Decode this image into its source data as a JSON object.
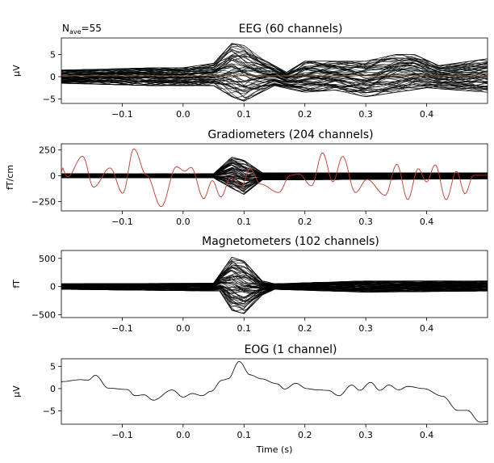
{
  "nave_label": {
    "base": "N",
    "sub": "ave",
    "value": "=55"
  },
  "chart_data": [
    {
      "type": "line",
      "title": "EEG (60 channels)",
      "ylabel": "µV",
      "xlabel": "",
      "xlim": [
        -0.2,
        0.5
      ],
      "ylim": [
        -6,
        8.7
      ],
      "xticks": [
        -0.1,
        0.0,
        0.1,
        0.2,
        0.3,
        0.4
      ],
      "xtick_labels": [
        "−0.1",
        "0.0",
        "0.1",
        "0.2",
        "0.3",
        "0.4"
      ],
      "yticks": [
        5,
        0,
        -5
      ],
      "ytick_labels": [
        "5",
        "0",
        "−5"
      ],
      "channel_count": 60,
      "trace_color": "#000000",
      "envelope_upper": [
        [
          -0.2,
          1.5
        ],
        [
          -0.05,
          2
        ],
        [
          0.0,
          2
        ],
        [
          0.05,
          3
        ],
        [
          0.08,
          7.5
        ],
        [
          0.1,
          7
        ],
        [
          0.13,
          4
        ],
        [
          0.17,
          1
        ],
        [
          0.2,
          3.5
        ],
        [
          0.3,
          3.5
        ],
        [
          0.35,
          5
        ],
        [
          0.38,
          5
        ],
        [
          0.42,
          2.5
        ],
        [
          0.5,
          4
        ]
      ],
      "envelope_lower": [
        [
          -0.2,
          -1.5
        ],
        [
          -0.05,
          -2
        ],
        [
          0.05,
          -2
        ],
        [
          0.08,
          -4.5
        ],
        [
          0.1,
          -5.5
        ],
        [
          0.15,
          -2
        ],
        [
          0.2,
          -3.5
        ],
        [
          0.25,
          -3
        ],
        [
          0.3,
          -4.5
        ],
        [
          0.4,
          -2.5
        ],
        [
          0.5,
          -3.5
        ]
      ],
      "highlight_color": "#c0392b",
      "highlight_trace": [
        [
          -0.2,
          0.2
        ],
        [
          0.5,
          0.2
        ]
      ]
    },
    {
      "type": "line",
      "title": "Gradiometers (204 channels)",
      "ylabel": "fT/cm",
      "xlabel": "",
      "xlim": [
        -0.2,
        0.5
      ],
      "ylim": [
        -340,
        310
      ],
      "xticks": [
        -0.1,
        0.0,
        0.1,
        0.2,
        0.3,
        0.4
      ],
      "xtick_labels": [
        "−0.1",
        "0.0",
        "0.1",
        "0.2",
        "0.3",
        "0.4"
      ],
      "yticks": [
        250,
        0,
        -250
      ],
      "ytick_labels": [
        "250",
        "0",
        "−250"
      ],
      "channel_count": 204,
      "trace_color": "#000000",
      "envelope_upper": [
        [
          -0.2,
          20
        ],
        [
          0.05,
          20
        ],
        [
          0.08,
          180
        ],
        [
          0.1,
          150
        ],
        [
          0.13,
          30
        ],
        [
          0.5,
          30
        ]
      ],
      "envelope_lower": [
        [
          -0.2,
          -20
        ],
        [
          0.05,
          -20
        ],
        [
          0.08,
          -120
        ],
        [
          0.1,
          -180
        ],
        [
          0.13,
          -40
        ],
        [
          0.5,
          -30
        ]
      ],
      "highlight_color": "#c0392b",
      "highlight_trace": [
        [
          -0.2,
          40
        ],
        [
          -0.201,
          100
        ],
        [
          -0.19,
          -10
        ],
        [
          -0.165,
          190
        ],
        [
          -0.147,
          -110
        ],
        [
          -0.12,
          77
        ],
        [
          -0.099,
          -170
        ],
        [
          -0.081,
          263
        ],
        [
          -0.06,
          5
        ],
        [
          -0.036,
          -300
        ],
        [
          -0.011,
          88
        ],
        [
          0.003,
          45
        ],
        [
          0.013,
          82
        ],
        [
          0.034,
          -222
        ],
        [
          0.048,
          -45
        ],
        [
          0.062,
          -206
        ],
        [
          0.078,
          -20
        ],
        [
          0.096,
          -98
        ],
        [
          0.11,
          70
        ],
        [
          0.127,
          -80
        ],
        [
          0.157,
          -162
        ],
        [
          0.176,
          5
        ],
        [
          0.19,
          18
        ],
        [
          0.211,
          -98
        ],
        [
          0.229,
          224
        ],
        [
          0.246,
          -60
        ],
        [
          0.262,
          190
        ],
        [
          0.283,
          -162
        ],
        [
          0.302,
          -35
        ],
        [
          0.332,
          -188
        ],
        [
          0.351,
          113
        ],
        [
          0.369,
          -232
        ],
        [
          0.386,
          70
        ],
        [
          0.4,
          -60
        ],
        [
          0.414,
          108
        ],
        [
          0.432,
          -232
        ],
        [
          0.449,
          45
        ],
        [
          0.463,
          -175
        ],
        [
          0.477,
          5
        ],
        [
          0.499,
          5
        ]
      ]
    },
    {
      "type": "line",
      "title": "Magnetometers (102 channels)",
      "ylabel": "fT",
      "xlabel": "",
      "xlim": [
        -0.2,
        0.5
      ],
      "ylim": [
        -550,
        640
      ],
      "xticks": [
        -0.1,
        0.0,
        0.1,
        0.2,
        0.3,
        0.4
      ],
      "xtick_labels": [
        "−0.1",
        "0.0",
        "0.1",
        "0.2",
        "0.3",
        "0.4"
      ],
      "yticks": [
        500,
        0,
        -500
      ],
      "ytick_labels": [
        "500",
        "0",
        "−500"
      ],
      "channel_count": 102,
      "trace_color": "#000000",
      "envelope_upper": [
        [
          -0.2,
          50
        ],
        [
          0.05,
          60
        ],
        [
          0.08,
          520
        ],
        [
          0.1,
          450
        ],
        [
          0.13,
          100
        ],
        [
          0.15,
          50
        ],
        [
          0.3,
          100
        ],
        [
          0.5,
          100
        ]
      ],
      "envelope_lower": [
        [
          -0.2,
          -50
        ],
        [
          0.06,
          -80
        ],
        [
          0.08,
          -420
        ],
        [
          0.1,
          -480
        ],
        [
          0.13,
          -150
        ],
        [
          0.15,
          -50
        ],
        [
          0.3,
          -100
        ],
        [
          0.5,
          -80
        ]
      ]
    },
    {
      "type": "line",
      "title": "EOG (1 channel)",
      "ylabel": "µV",
      "xlabel": "Time (s)",
      "xlim": [
        -0.2,
        0.5
      ],
      "ylim": [
        -8,
        6.7
      ],
      "xticks": [
        -0.1,
        0.0,
        0.1,
        0.2,
        0.3,
        0.4
      ],
      "xtick_labels": [
        "−0.1",
        "0.0",
        "0.1",
        "0.2",
        "0.3",
        "0.4"
      ],
      "yticks": [
        5,
        0,
        -5
      ],
      "ytick_labels": [
        "5",
        "0",
        "−5"
      ],
      "channel_count": 1,
      "trace_color": "#000000",
      "trace": [
        [
          -0.2,
          1.5
        ],
        [
          -0.197,
          1.6
        ],
        [
          -0.169,
          2.0
        ],
        [
          -0.156,
          1.9
        ],
        [
          -0.144,
          3.0
        ],
        [
          -0.123,
          0.1
        ],
        [
          -0.092,
          -0.2
        ],
        [
          -0.079,
          -1.6
        ],
        [
          -0.064,
          -1.4
        ],
        [
          -0.049,
          -2.6
        ],
        [
          -0.018,
          -0.3
        ],
        [
          0.0,
          -1.9
        ],
        [
          0.015,
          -1.1
        ],
        [
          0.031,
          -1.6
        ],
        [
          0.046,
          -0.6
        ],
        [
          0.064,
          1.9
        ],
        [
          0.074,
          2.2
        ],
        [
          0.092,
          6.1
        ],
        [
          0.11,
          3.1
        ],
        [
          0.128,
          2.2
        ],
        [
          0.154,
          1.1
        ],
        [
          0.167,
          -0.1
        ],
        [
          0.185,
          1.2
        ],
        [
          0.203,
          0
        ],
        [
          0.221,
          -0.3
        ],
        [
          0.238,
          -0.4
        ],
        [
          0.256,
          -1.6
        ],
        [
          0.277,
          0.8
        ],
        [
          0.29,
          -0.4
        ],
        [
          0.308,
          1.4
        ],
        [
          0.323,
          -0.4
        ],
        [
          0.338,
          0.8
        ],
        [
          0.354,
          -0.3
        ],
        [
          0.369,
          0.5
        ],
        [
          0.395,
          0
        ],
        [
          0.426,
          -1.7
        ],
        [
          0.451,
          -4.9
        ],
        [
          0.467,
          -4.9
        ],
        [
          0.487,
          -7.5
        ],
        [
          0.499,
          -7.4
        ]
      ]
    }
  ]
}
